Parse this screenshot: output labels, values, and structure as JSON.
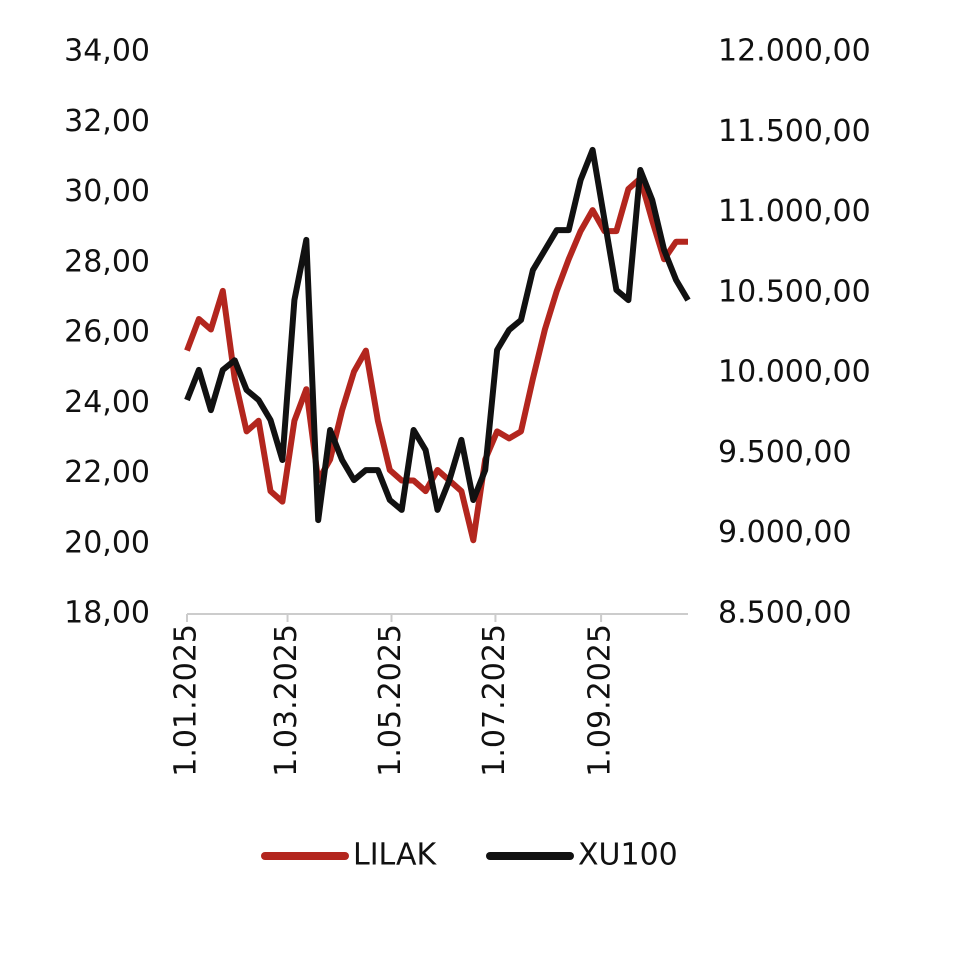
{
  "chart_data": {
    "type": "line",
    "x": [
      "2025-01-01",
      "2025-01-08",
      "2025-01-15",
      "2025-01-22",
      "2025-01-29",
      "2025-02-05",
      "2025-02-12",
      "2025-02-19",
      "2025-02-26",
      "2025-03-05",
      "2025-03-12",
      "2025-03-19",
      "2025-03-26",
      "2025-04-02",
      "2025-04-09",
      "2025-04-16",
      "2025-04-23",
      "2025-04-30",
      "2025-05-07",
      "2025-05-14",
      "2025-05-21",
      "2025-05-28",
      "2025-06-04",
      "2025-06-11",
      "2025-06-18",
      "2025-06-25",
      "2025-07-02",
      "2025-07-09",
      "2025-07-16",
      "2025-07-23",
      "2025-07-30",
      "2025-08-06",
      "2025-08-13",
      "2025-08-20",
      "2025-08-27",
      "2025-09-03",
      "2025-09-10",
      "2025-09-17",
      "2025-09-24",
      "2025-10-01",
      "2025-10-08",
      "2025-10-15",
      "2025-10-22"
    ],
    "series": [
      {
        "name": "LILAK",
        "color": "#b3261e",
        "axis": "y",
        "values": [
          25.5,
          26.4,
          26.1,
          27.2,
          24.7,
          23.2,
          23.5,
          21.5,
          21.2,
          23.5,
          24.4,
          21.8,
          22.4,
          23.8,
          24.9,
          25.5,
          23.5,
          22.1,
          21.8,
          21.8,
          21.5,
          22.1,
          21.8,
          21.5,
          20.1,
          22.4,
          23.2,
          23.0,
          23.2,
          24.7,
          26.1,
          27.2,
          28.1,
          28.9,
          29.5,
          28.9,
          28.9,
          30.1,
          30.4,
          29.2,
          28.1,
          28.6,
          28.6
        ]
      },
      {
        "name": "XU100",
        "color": "#111111",
        "axis": "y2",
        "values": [
          9833,
          10020,
          9770,
          10020,
          10080,
          9895,
          9833,
          9708,
          9459,
          10455,
          10830,
          9085,
          9646,
          9459,
          9334,
          9396,
          9396,
          9210,
          9148,
          9646,
          9521,
          9148,
          9334,
          9584,
          9210,
          9396,
          10144,
          10269,
          10331,
          10642,
          10767,
          10891,
          10891,
          11203,
          11390,
          10954,
          10518,
          10455,
          11265,
          11078,
          10767,
          10580,
          10455
        ]
      }
    ],
    "xlim": [
      "2025-01-01",
      "2025-10-22"
    ],
    "xticks": [
      {
        "value": "2025-01-01",
        "label": "1.01.2025"
      },
      {
        "value": "2025-03-01",
        "label": "1.03.2025"
      },
      {
        "value": "2025-05-01",
        "label": "1.05.2025"
      },
      {
        "value": "2025-07-01",
        "label": "1.07.2025"
      },
      {
        "value": "2025-09-01",
        "label": "1.09.2025"
      }
    ],
    "ylim": [
      18,
      34
    ],
    "yticks": [
      {
        "value": 18,
        "label": "18,00"
      },
      {
        "value": 20,
        "label": "20,00"
      },
      {
        "value": 22,
        "label": "22,00"
      },
      {
        "value": 24,
        "label": "24,00"
      },
      {
        "value": 26,
        "label": "26,00"
      },
      {
        "value": 28,
        "label": "28,00"
      },
      {
        "value": 30,
        "label": "30,00"
      },
      {
        "value": 32,
        "label": "32,00"
      },
      {
        "value": 34,
        "label": "34,00"
      }
    ],
    "y2lim": [
      8500,
      12000
    ],
    "y2ticks": [
      {
        "value": 8500,
        "label": "8.500,00"
      },
      {
        "value": 9000,
        "label": "9.000,00"
      },
      {
        "value": 9500,
        "label": "9.500,00"
      },
      {
        "value": 10000,
        "label": "10.000,00"
      },
      {
        "value": 10500,
        "label": "10.500,00"
      },
      {
        "value": 11000,
        "label": "11.000,00"
      },
      {
        "value": 11500,
        "label": "11.500,00"
      },
      {
        "value": 12000,
        "label": "12.000,00"
      }
    ],
    "legend": "bottom"
  }
}
